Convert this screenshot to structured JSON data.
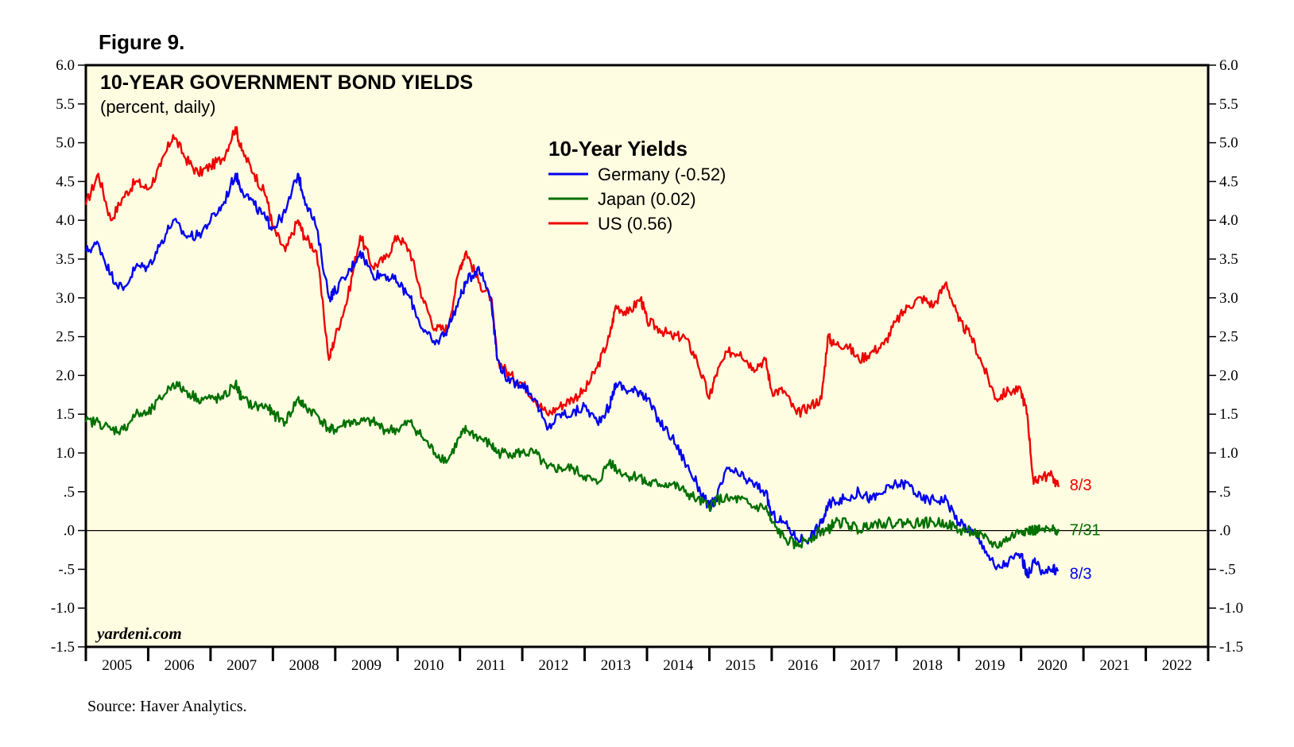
{
  "figure_label": "Figure 9.",
  "source": "Source: Haver Analytics.",
  "watermark": "yardeni.com",
  "colors": {
    "plot_bg": "#fffde1",
    "germany": "#0000ee",
    "japan": "#007000",
    "us": "#ee0000",
    "zero_line": "#000000"
  },
  "chart_data": {
    "type": "line",
    "title": "10-YEAR GOVERNMENT BOND YIELDS",
    "subtitle": "(percent, daily)",
    "legend_title": "10-Year Yields",
    "legend_position": "top-center",
    "ylim": [
      -1.5,
      6.0
    ],
    "y_ticks": [
      6.0,
      5.5,
      5.0,
      4.5,
      4.0,
      3.5,
      3.0,
      2.5,
      2.0,
      1.5,
      1.0,
      0.5,
      0.0,
      -0.5,
      -1.0,
      -1.5
    ],
    "y_tick_labels": [
      "6.0",
      "5.5",
      "5.0",
      "4.5",
      "4.0",
      "3.5",
      "3.0",
      "2.5",
      "2.0",
      "1.5",
      "1.0",
      ".5",
      ".0",
      "-.5",
      "-1.0",
      "-1.5"
    ],
    "xlim": [
      2005,
      2023
    ],
    "x_tick_labels": [
      "2005",
      "2006",
      "2007",
      "2008",
      "2009",
      "2010",
      "2011",
      "2012",
      "2013",
      "2014",
      "2015",
      "2016",
      "2017",
      "2018",
      "2019",
      "2020",
      "2021",
      "2022"
    ],
    "zero_line": 0.0,
    "series": [
      {
        "name": "US",
        "legend": "US (0.56)",
        "color": "#ee0000",
        "end_label": "8/3",
        "x": [
          2005.0,
          2005.2,
          2005.4,
          2005.6,
          2005.8,
          2006.0,
          2006.2,
          2006.4,
          2006.6,
          2006.8,
          2007.0,
          2007.2,
          2007.4,
          2007.5,
          2007.7,
          2007.9,
          2008.0,
          2008.2,
          2008.4,
          2008.5,
          2008.7,
          2008.9,
          2009.0,
          2009.2,
          2009.4,
          2009.6,
          2009.8,
          2010.0,
          2010.2,
          2010.4,
          2010.6,
          2010.8,
          2011.0,
          2011.1,
          2011.3,
          2011.5,
          2011.6,
          2011.8,
          2012.0,
          2012.2,
          2012.4,
          2012.6,
          2012.8,
          2013.0,
          2013.2,
          2013.4,
          2013.5,
          2013.7,
          2013.9,
          2014.0,
          2014.2,
          2014.4,
          2014.6,
          2014.8,
          2015.0,
          2015.1,
          2015.3,
          2015.5,
          2015.7,
          2015.9,
          2016.0,
          2016.2,
          2016.4,
          2016.6,
          2016.8,
          2016.9,
          2017.0,
          2017.2,
          2017.4,
          2017.6,
          2017.8,
          2018.0,
          2018.2,
          2018.4,
          2018.6,
          2018.8,
          2019.0,
          2019.2,
          2019.4,
          2019.6,
          2019.8,
          2020.0,
          2020.1,
          2020.2,
          2020.3,
          2020.5,
          2020.6
        ],
        "y": [
          4.2,
          4.6,
          4.0,
          4.3,
          4.5,
          4.4,
          4.7,
          5.1,
          4.8,
          4.6,
          4.7,
          4.8,
          5.2,
          4.9,
          4.6,
          4.3,
          3.9,
          3.6,
          4.0,
          3.8,
          3.6,
          2.2,
          2.5,
          3.0,
          3.8,
          3.4,
          3.5,
          3.8,
          3.6,
          3.0,
          2.6,
          2.6,
          3.4,
          3.6,
          3.2,
          3.0,
          2.2,
          2.0,
          1.9,
          1.7,
          1.5,
          1.6,
          1.7,
          1.8,
          2.1,
          2.5,
          2.9,
          2.8,
          3.0,
          2.7,
          2.6,
          2.5,
          2.5,
          2.2,
          1.7,
          2.0,
          2.3,
          2.3,
          2.1,
          2.2,
          1.8,
          1.8,
          1.5,
          1.6,
          1.7,
          2.5,
          2.4,
          2.4,
          2.2,
          2.3,
          2.4,
          2.7,
          2.9,
          3.0,
          2.9,
          3.2,
          2.7,
          2.5,
          2.1,
          1.7,
          1.8,
          1.8,
          1.5,
          0.6,
          0.7,
          0.7,
          0.56
        ]
      },
      {
        "name": "Germany",
        "legend": "Germany (-0.52)",
        "color": "#0000ee",
        "end_label": "8/3",
        "x": [
          2005.0,
          2005.2,
          2005.4,
          2005.6,
          2005.8,
          2006.0,
          2006.2,
          2006.4,
          2006.6,
          2006.8,
          2007.0,
          2007.2,
          2007.4,
          2007.5,
          2007.7,
          2007.9,
          2008.0,
          2008.2,
          2008.4,
          2008.5,
          2008.7,
          2008.9,
          2009.0,
          2009.2,
          2009.4,
          2009.6,
          2009.8,
          2010.0,
          2010.2,
          2010.4,
          2010.6,
          2010.8,
          2011.0,
          2011.1,
          2011.3,
          2011.5,
          2011.6,
          2011.8,
          2012.0,
          2012.2,
          2012.4,
          2012.6,
          2012.8,
          2013.0,
          2013.2,
          2013.4,
          2013.5,
          2013.7,
          2013.9,
          2014.0,
          2014.2,
          2014.4,
          2014.6,
          2014.8,
          2015.0,
          2015.1,
          2015.3,
          2015.5,
          2015.7,
          2015.9,
          2016.0,
          2016.2,
          2016.4,
          2016.6,
          2016.8,
          2016.9,
          2017.0,
          2017.2,
          2017.4,
          2017.6,
          2017.8,
          2018.0,
          2018.2,
          2018.4,
          2018.6,
          2018.8,
          2019.0,
          2019.2,
          2019.4,
          2019.6,
          2019.8,
          2020.0,
          2020.1,
          2020.2,
          2020.3,
          2020.5,
          2020.6
        ],
        "y": [
          3.6,
          3.7,
          3.3,
          3.1,
          3.4,
          3.4,
          3.7,
          4.0,
          3.8,
          3.8,
          4.0,
          4.2,
          4.6,
          4.4,
          4.2,
          4.0,
          3.9,
          4.1,
          4.6,
          4.3,
          3.9,
          3.0,
          3.1,
          3.3,
          3.6,
          3.3,
          3.3,
          3.2,
          3.0,
          2.6,
          2.4,
          2.6,
          3.0,
          3.2,
          3.4,
          3.0,
          2.2,
          1.9,
          1.9,
          1.7,
          1.3,
          1.5,
          1.5,
          1.6,
          1.4,
          1.6,
          1.9,
          1.8,
          1.8,
          1.7,
          1.4,
          1.2,
          0.9,
          0.6,
          0.3,
          0.4,
          0.8,
          0.7,
          0.6,
          0.5,
          0.2,
          0.1,
          -0.1,
          -0.1,
          0.1,
          0.3,
          0.4,
          0.4,
          0.5,
          0.4,
          0.5,
          0.6,
          0.6,
          0.4,
          0.4,
          0.4,
          0.1,
          0.0,
          -0.2,
          -0.5,
          -0.4,
          -0.3,
          -0.6,
          -0.4,
          -0.5,
          -0.5,
          -0.52
        ]
      },
      {
        "name": "Japan",
        "legend": "Japan (0.02)",
        "color": "#007000",
        "end_label": "7/31",
        "x": [
          2005.0,
          2005.2,
          2005.4,
          2005.6,
          2005.8,
          2006.0,
          2006.2,
          2006.4,
          2006.6,
          2006.8,
          2007.0,
          2007.2,
          2007.4,
          2007.5,
          2007.7,
          2007.9,
          2008.0,
          2008.2,
          2008.4,
          2008.5,
          2008.7,
          2008.9,
          2009.0,
          2009.2,
          2009.4,
          2009.6,
          2009.8,
          2010.0,
          2010.2,
          2010.4,
          2010.6,
          2010.8,
          2011.0,
          2011.1,
          2011.3,
          2011.5,
          2011.6,
          2011.8,
          2012.0,
          2012.2,
          2012.4,
          2012.6,
          2012.8,
          2013.0,
          2013.2,
          2013.4,
          2013.5,
          2013.7,
          2013.9,
          2014.0,
          2014.2,
          2014.4,
          2014.6,
          2014.8,
          2015.0,
          2015.1,
          2015.3,
          2015.5,
          2015.7,
          2015.9,
          2016.0,
          2016.2,
          2016.4,
          2016.6,
          2016.8,
          2016.9,
          2017.0,
          2017.2,
          2017.4,
          2017.6,
          2017.8,
          2018.0,
          2018.2,
          2018.4,
          2018.6,
          2018.8,
          2019.0,
          2019.2,
          2019.4,
          2019.6,
          2019.8,
          2020.0,
          2020.1,
          2020.2,
          2020.3,
          2020.5,
          2020.6
        ],
        "y": [
          1.4,
          1.4,
          1.3,
          1.3,
          1.5,
          1.5,
          1.7,
          1.9,
          1.8,
          1.7,
          1.7,
          1.7,
          1.9,
          1.7,
          1.6,
          1.6,
          1.5,
          1.4,
          1.7,
          1.6,
          1.5,
          1.3,
          1.3,
          1.4,
          1.4,
          1.4,
          1.3,
          1.3,
          1.4,
          1.2,
          1.0,
          0.9,
          1.2,
          1.3,
          1.2,
          1.1,
          1.0,
          1.0,
          1.0,
          1.0,
          0.8,
          0.8,
          0.8,
          0.7,
          0.6,
          0.9,
          0.8,
          0.7,
          0.7,
          0.6,
          0.6,
          0.6,
          0.5,
          0.4,
          0.3,
          0.4,
          0.4,
          0.4,
          0.3,
          0.3,
          0.1,
          -0.1,
          -0.2,
          -0.1,
          0.0,
          0.0,
          0.1,
          0.1,
          0.0,
          0.1,
          0.1,
          0.1,
          0.1,
          0.1,
          0.1,
          0.1,
          0.0,
          0.0,
          -0.1,
          -0.2,
          -0.1,
          0.0,
          0.0,
          0.0,
          0.0,
          0.0,
          0.02
        ]
      }
    ]
  }
}
